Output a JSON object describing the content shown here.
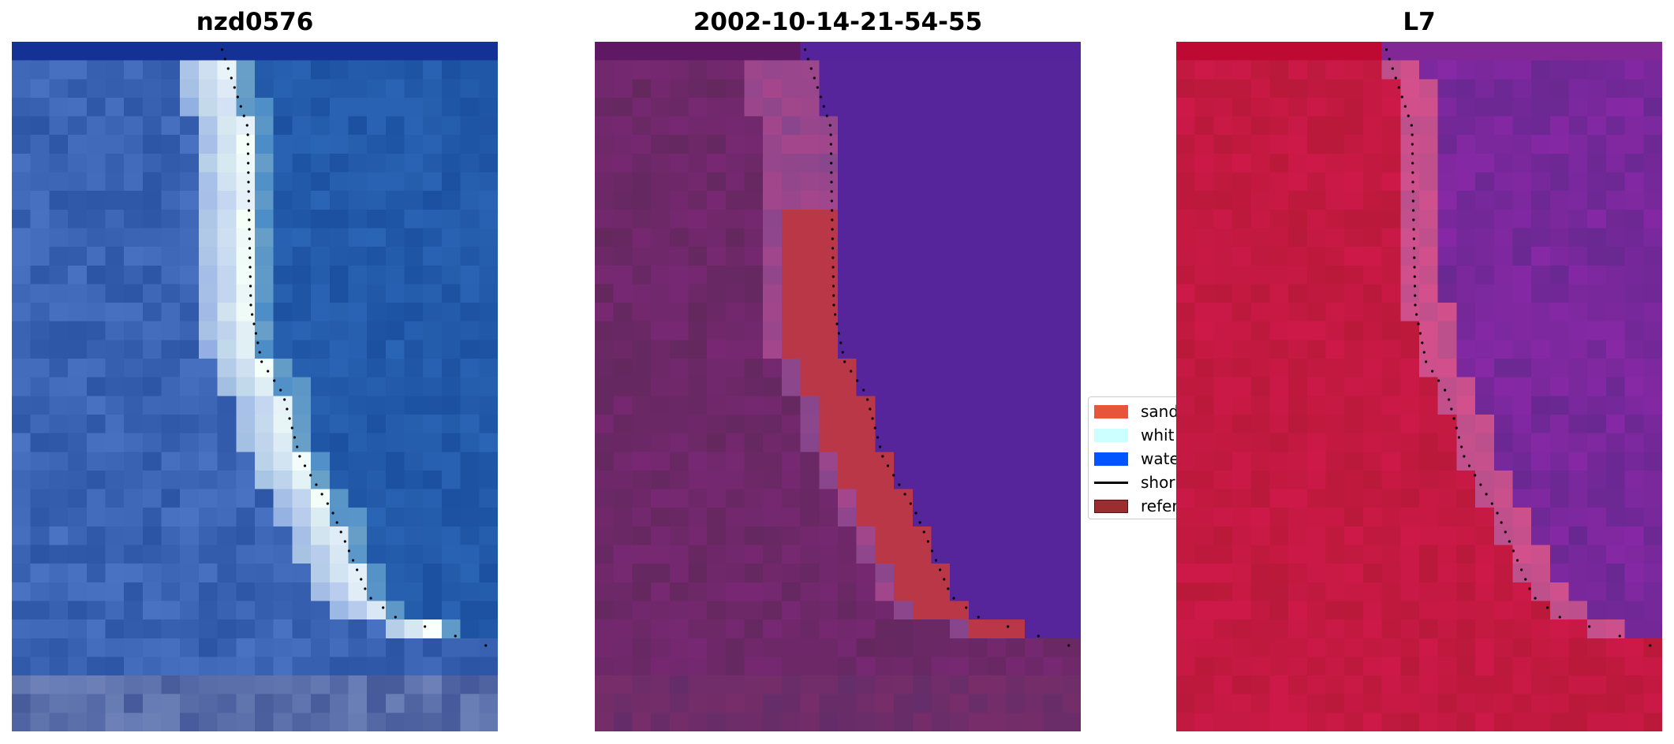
{
  "panels": [
    {
      "title": "nzd0576",
      "style": "rgb"
    },
    {
      "title": "2002-10-14-21-54-55",
      "style": "classified"
    },
    {
      "title": "L7",
      "style": "index"
    }
  ],
  "legend": {
    "items": [
      {
        "label": "sand",
        "color": "#e8553a",
        "kind": "patch"
      },
      {
        "label": "whit",
        "color": "#ccffff",
        "kind": "patch"
      },
      {
        "label": "wate",
        "color": "#0055ff",
        "kind": "patch"
      },
      {
        "label": "shor",
        "color": "#000000",
        "kind": "line"
      },
      {
        "label": "refer",
        "color": "#9b2d30",
        "kind": "patch-outlined"
      }
    ]
  }
}
